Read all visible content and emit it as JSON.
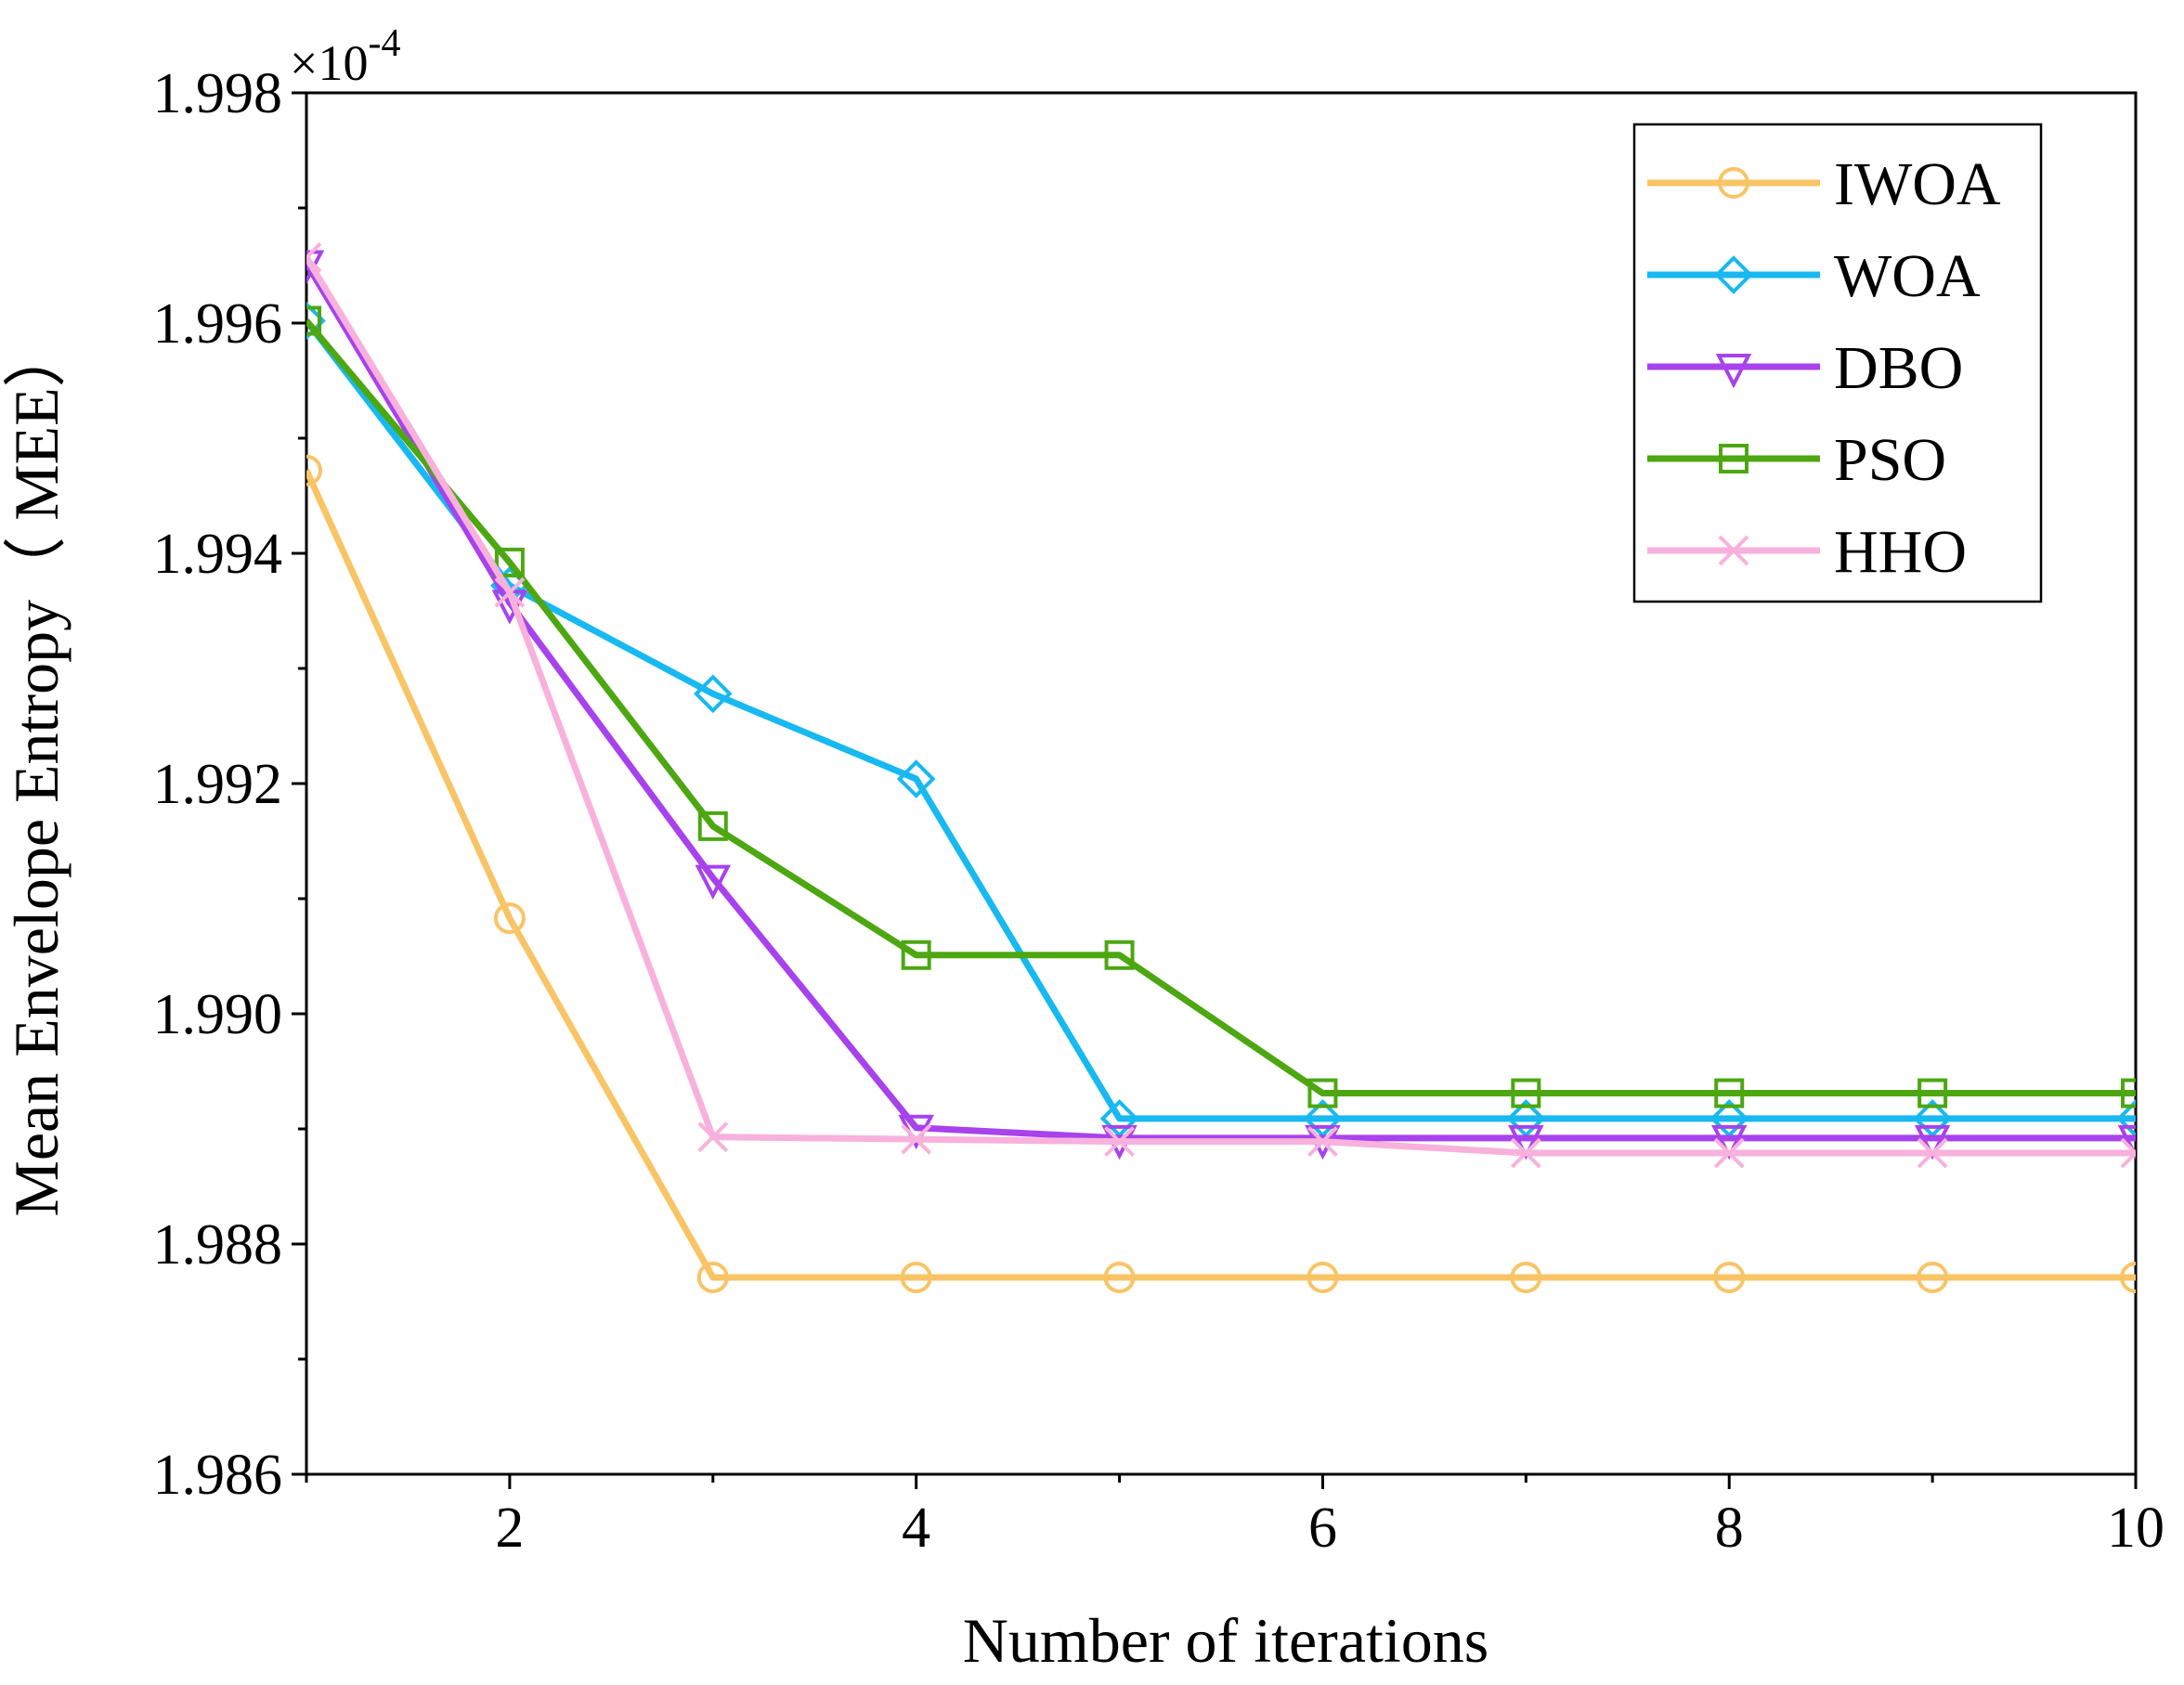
{
  "chart_data": {
    "type": "line",
    "title": "",
    "xlabel": "Number of iterations",
    "ylabel": "Mean Envelope Entropy（ MEE）",
    "y_multiplier_label": "×10",
    "y_multiplier_exponent": "-4",
    "xlim": [
      1,
      10
    ],
    "ylim": [
      1.986,
      1.998
    ],
    "x_ticks": [
      2,
      4,
      6,
      8,
      10
    ],
    "x_tick_labels": [
      "2",
      "4",
      "6",
      "8",
      "10"
    ],
    "y_ticks": [
      1.986,
      1.988,
      1.99,
      1.992,
      1.994,
      1.996,
      1.998
    ],
    "y_tick_labels": [
      "1.986",
      "1.988",
      "1.990",
      "1.992",
      "1.994",
      "1.996",
      "1.998"
    ],
    "grid": false,
    "legend_position": "top-right",
    "x": [
      1,
      2,
      3,
      4,
      5,
      6,
      7,
      8,
      9,
      10
    ],
    "series": [
      {
        "name": "IWOA",
        "color": "#F9C465",
        "marker": "circle",
        "values": [
          1.99472,
          1.99083,
          1.98771,
          1.98771,
          1.98771,
          1.98771,
          1.98771,
          1.98771,
          1.98771,
          1.98771
        ]
      },
      {
        "name": "WOA",
        "color": "#17B9F0",
        "marker": "diamond",
        "values": [
          1.99602,
          1.99372,
          1.99278,
          1.99204,
          1.98909,
          1.98909,
          1.98909,
          1.98909,
          1.98909,
          1.98909
        ]
      },
      {
        "name": "DBO",
        "color": "#A742EC",
        "marker": "triangle-down",
        "values": [
          1.99652,
          1.99357,
          1.99118,
          1.98901,
          1.98892,
          1.98892,
          1.98892,
          1.98892,
          1.98892,
          1.98892
        ]
      },
      {
        "name": "PSO",
        "color": "#4CA711",
        "marker": "square",
        "values": [
          1.99602,
          1.99392,
          1.99163,
          1.99051,
          1.99051,
          1.98931,
          1.98931,
          1.98931,
          1.98931,
          1.98931
        ]
      },
      {
        "name": "HHO",
        "color": "#F8B1DC",
        "marker": "x",
        "values": [
          1.99657,
          1.99366,
          1.98893,
          1.98891,
          1.98889,
          1.98889,
          1.98879,
          1.98879,
          1.98879,
          1.98879
        ]
      }
    ]
  }
}
